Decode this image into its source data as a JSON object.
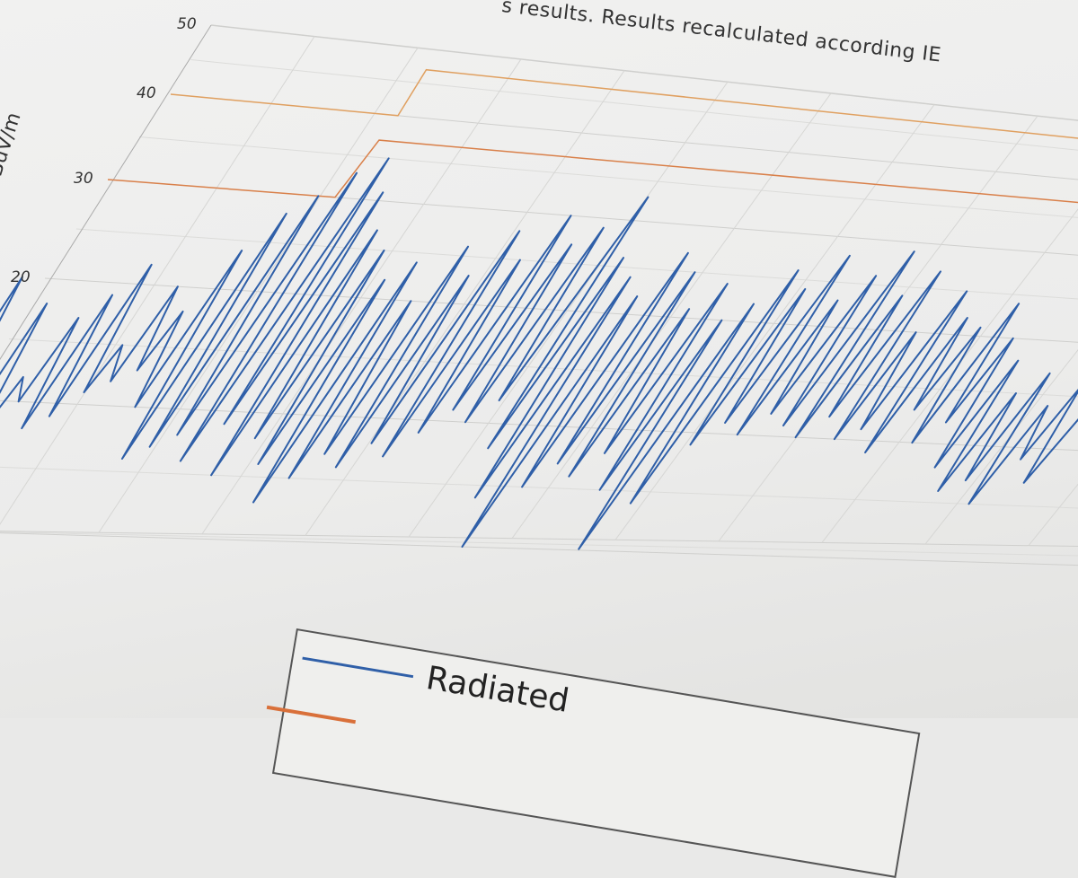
{
  "header": {
    "title_fragment": "s results. Results recalculated according IE"
  },
  "chart_data": {
    "type": "line",
    "title": "",
    "ylabel": "dBuV/m",
    "yticks": [
      "20",
      "30",
      "40",
      "50"
    ],
    "ylim": [
      0,
      50
    ],
    "grid": true,
    "legend_placement": "bottom",
    "legend": [
      {
        "label": "Radiated",
        "color": "#2f5fa8"
      }
    ],
    "series": [
      {
        "color": "#2f5fa8",
        "values": [
          8,
          16,
          6,
          20,
          9,
          14,
          5,
          18,
          7,
          12,
          10,
          17,
          8,
          19,
          9,
          22,
          11,
          15,
          12,
          20,
          13,
          18,
          10,
          24,
          6,
          28,
          7,
          30,
          8,
          33,
          6,
          35,
          9,
          31,
          5,
          27,
          8,
          25,
          6,
          22,
          3,
          24,
          5,
          20,
          7,
          26,
          6,
          23,
          8,
          28,
          7,
          25,
          9,
          30,
          11,
          27,
          10,
          29,
          12,
          33,
          8,
          26,
          4,
          24,
          0,
          22,
          5,
          27,
          7,
          25,
          6,
          21,
          8,
          24,
          5,
          20,
          -1,
          22,
          4,
          26,
          9,
          24,
          11,
          28,
          10,
          23,
          12,
          26,
          11,
          29,
          10,
          24,
          12,
          27,
          10,
          20,
          11,
          25,
          9,
          22,
          13,
          21,
          10,
          24,
          12,
          20,
          8,
          18,
          6,
          15,
          7,
          17,
          5,
          14,
          9,
          16,
          7,
          13
        ]
      }
    ],
    "limits": [
      {
        "color": "#e0a060",
        "steps": [
          [
            0,
            40
          ],
          [
            0.22,
            47
          ]
        ]
      },
      {
        "color": "#d9804a",
        "steps": [
          [
            0,
            30
          ],
          [
            0.22,
            37
          ]
        ]
      }
    ]
  }
}
